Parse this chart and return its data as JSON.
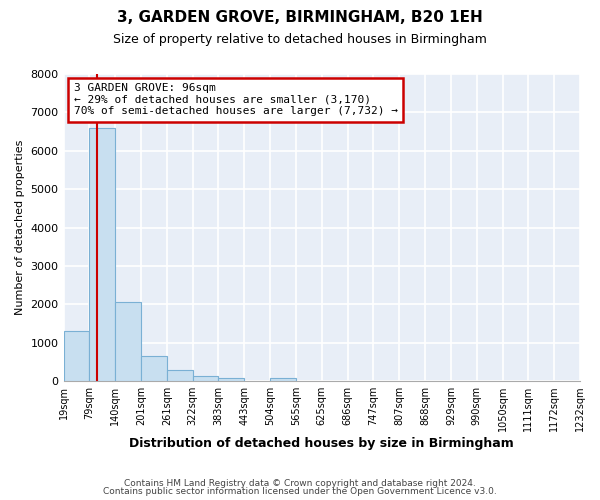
{
  "title": "3, GARDEN GROVE, BIRMINGHAM, B20 1EH",
  "subtitle": "Size of property relative to detached houses in Birmingham",
  "xlabel": "Distribution of detached houses by size in Birmingham",
  "ylabel": "Number of detached properties",
  "bin_labels": [
    "19sqm",
    "79sqm",
    "140sqm",
    "201sqm",
    "261sqm",
    "322sqm",
    "383sqm",
    "443sqm",
    "504sqm",
    "565sqm",
    "625sqm",
    "686sqm",
    "747sqm",
    "807sqm",
    "868sqm",
    "929sqm",
    "990sqm",
    "1050sqm",
    "1111sqm",
    "1172sqm",
    "1232sqm"
  ],
  "bar_values": [
    1300,
    6600,
    2050,
    650,
    300,
    130,
    90,
    0,
    90,
    0,
    0,
    0,
    0,
    0,
    0,
    0,
    0,
    0,
    0,
    0
  ],
  "bar_color": "#c8dff0",
  "bar_edge_color": "#7ab0d4",
  "annotation_title": "3 GARDEN GROVE: 96sqm",
  "annotation_line1": "← 29% of detached houses are smaller (3,170)",
  "annotation_line2": "70% of semi-detached houses are larger (7,732) →",
  "annotation_box_color": "#ffffff",
  "annotation_box_edge": "#cc0000",
  "vline_color": "#cc0000",
  "ylim": [
    0,
    8000
  ],
  "yticks": [
    0,
    1000,
    2000,
    3000,
    4000,
    5000,
    6000,
    7000,
    8000
  ],
  "bin_edges": [
    19,
    79,
    140,
    201,
    261,
    322,
    383,
    443,
    504,
    565,
    625,
    686,
    747,
    807,
    868,
    929,
    990,
    1050,
    1111,
    1172,
    1232
  ],
  "property_size": 96,
  "footer1": "Contains HM Land Registry data © Crown copyright and database right 2024.",
  "footer2": "Contains public sector information licensed under the Open Government Licence v3.0.",
  "bg_color": "#ffffff",
  "plot_bg_color": "#e8eef7",
  "grid_color": "#ffffff",
  "title_fontsize": 11,
  "subtitle_fontsize": 9
}
